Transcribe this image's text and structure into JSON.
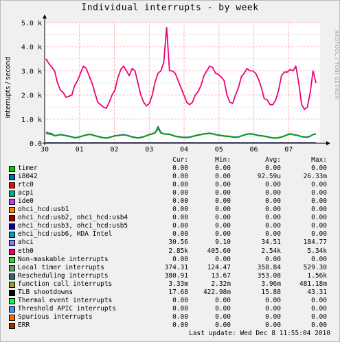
{
  "title": "Individual interrupts - by week",
  "watermark": "RRDTOOL / TOBI OETIKER",
  "chart_data": {
    "type": "line",
    "ylabel": "interrupts / second",
    "ylim": [
      0,
      5000
    ],
    "y_ticks": [
      "0.0",
      "1.0 k",
      "2.0 k",
      "3.0 k",
      "4.0 k",
      "5.0 k"
    ],
    "x_ticks": [
      "30",
      "01",
      "02",
      "03",
      "04",
      "05",
      "06",
      "07"
    ],
    "grid": true,
    "series": [
      {
        "name": "ahci",
        "color": "#7f7fff"
      },
      {
        "name": "eth0",
        "color": "#ee0077",
        "values": [
          3500,
          3300,
          3150,
          3000,
          2500,
          2200,
          2100,
          1900,
          1950,
          2000,
          2400,
          2600,
          2900,
          3200,
          3100,
          2800,
          2500,
          2100,
          1700,
          1600,
          1500,
          1450,
          1700,
          2000,
          2200,
          2700,
          3050,
          3200,
          3000,
          2800,
          3100,
          3000,
          2500,
          2000,
          1700,
          1550,
          1650,
          2000,
          2550,
          2900,
          3000,
          3350,
          4800,
          3000,
          3000,
          2900,
          2600,
          2300,
          2000,
          1700,
          1600,
          1700,
          2000,
          2150,
          2400,
          2800,
          3000,
          3200,
          3150,
          2900,
          2850,
          2750,
          2600,
          2000,
          1700,
          1650,
          2000,
          2300,
          2750,
          2900,
          3100,
          3000,
          3000,
          2900,
          2650,
          2300,
          1850,
          1800,
          1600,
          1600,
          1800,
          2200,
          2800,
          2950,
          2950,
          3050,
          3000,
          3200,
          2500,
          1600,
          1400,
          1500,
          2100,
          3000,
          2500
        ]
      },
      {
        "name": "Local timer interrupts",
        "color": "#00aa00",
        "values": [
          400,
          380,
          360,
          300,
          320,
          350,
          330,
          300,
          280,
          250,
          220,
          230,
          260,
          300,
          330,
          360,
          340,
          300,
          270,
          240,
          220,
          200,
          230,
          260,
          300,
          310,
          330,
          340,
          320,
          290,
          250,
          230,
          210,
          230,
          260,
          300,
          350,
          380,
          420,
          600,
          420,
          380,
          370,
          360,
          320,
          280,
          260,
          240,
          230,
          230,
          240,
          270,
          300,
          330,
          350,
          380,
          390,
          400,
          380,
          350,
          330,
          310,
          290,
          280,
          270,
          250,
          240,
          250,
          290,
          330,
          370,
          380,
          370,
          340,
          310,
          300,
          280,
          260,
          230,
          210,
          200,
          220,
          250,
          290,
          340,
          380,
          350,
          330,
          300,
          260,
          250,
          240,
          280,
          350,
          380
        ]
      },
      {
        "name": "Rescheduling interrupts",
        "color": "#336699",
        "values": [
          450,
          420,
          400,
          320,
          340,
          370,
          350,
          320,
          300,
          270,
          240,
          250,
          280,
          320,
          350,
          380,
          360,
          320,
          290,
          260,
          240,
          220,
          250,
          280,
          320,
          330,
          350,
          360,
          340,
          310,
          270,
          250,
          230,
          250,
          280,
          320,
          370,
          400,
          440,
          700,
          450,
          400,
          390,
          380,
          340,
          300,
          280,
          260,
          250,
          250,
          260,
          290,
          320,
          350,
          370,
          400,
          410,
          420,
          400,
          370,
          350,
          330,
          310,
          300,
          290,
          270,
          260,
          270,
          310,
          350,
          390,
          400,
          390,
          360,
          330,
          320,
          300,
          280,
          250,
          230,
          220,
          240,
          270,
          310,
          360,
          400,
          370,
          350,
          320,
          280,
          270,
          260,
          300,
          370,
          400
        ]
      },
      {
        "name": "TLB shootdowns",
        "color": "#000000"
      }
    ]
  },
  "legend": {
    "headers": [
      "Cur:",
      "Min:",
      "Avg:",
      "Max:"
    ],
    "rows": [
      {
        "name": "timer",
        "color": "#00cc00",
        "cur": "0.00",
        "min": "0.00",
        "avg": "0.00",
        "max": "0.00"
      },
      {
        "name": "i8042",
        "color": "#0066b3",
        "cur": "0.00",
        "min": "0.00",
        "avg": "92.59u",
        "max": "26.33m"
      },
      {
        "name": "rtc0",
        "color": "#ff0000",
        "cur": "0.00",
        "min": "0.00",
        "avg": "0.00",
        "max": "0.00"
      },
      {
        "name": "acpi",
        "color": "#00aa99",
        "cur": "0.00",
        "min": "0.00",
        "avg": "0.00",
        "max": "0.00"
      },
      {
        "name": "ide0",
        "color": "#cc33ff",
        "cur": "0.00",
        "min": "0.00",
        "avg": "0.00",
        "max": "0.00"
      },
      {
        "name": "ohci_hcd:usb1",
        "color": "#ff8000",
        "cur": "0.00",
        "min": "0.00",
        "avg": "0.00",
        "max": "0.00"
      },
      {
        "name": "ohci_hcd:usb2, ohci_hcd:usb4",
        "color": "#990000",
        "cur": "0.00",
        "min": "0.00",
        "avg": "0.00",
        "max": "0.00"
      },
      {
        "name": "ohci_hcd:usb3, ohci_hcd:usb5",
        "color": "#000099",
        "cur": "0.00",
        "min": "0.00",
        "avg": "0.00",
        "max": "0.00"
      },
      {
        "name": "ehci_hcd:usb6, HDA Intel",
        "color": "#0099cc",
        "cur": "0.00",
        "min": "0.00",
        "avg": "0.00",
        "max": "0.00"
      },
      {
        "name": "ahci",
        "color": "#7f7fff",
        "cur": "30.56",
        "min": "9.10",
        "avg": "34.51",
        "max": "184.77"
      },
      {
        "name": "eth0",
        "color": "#ee0077",
        "cur": "2.85k",
        "min": "405.60",
        "avg": "2.54k",
        "max": "5.34k"
      },
      {
        "name": "Non-maskable interrupts",
        "color": "#33cc33",
        "cur": "0.00",
        "min": "0.00",
        "avg": "0.00",
        "max": "0.00"
      },
      {
        "name": "Local timer interrupts",
        "color": "#669966",
        "cur": "374.31",
        "min": "124.47",
        "avg": "358.84",
        "max": "529.30"
      },
      {
        "name": "Rescheduling interrupts",
        "color": "#336666",
        "cur": "380.91",
        "min": "13.67",
        "avg": "353.08",
        "max": "1.56k"
      },
      {
        "name": "function call interrupts",
        "color": "#999933",
        "cur": "3.33m",
        "min": "2.32m",
        "avg": "3.96m",
        "max": "481.18m"
      },
      {
        "name": "TLB shootdowns",
        "color": "#000000",
        "cur": "17.68",
        "min": "422.98m",
        "avg": "15.88",
        "max": "43.31"
      },
      {
        "name": "Thermal event interrupts",
        "color": "#00ff33",
        "cur": "0.00",
        "min": "0.00",
        "avg": "0.00",
        "max": "0.00"
      },
      {
        "name": "Threshold APIC interrupts",
        "color": "#3399ff",
        "cur": "0.00",
        "min": "0.00",
        "avg": "0.00",
        "max": "0.00"
      },
      {
        "name": "Spurious interrupts",
        "color": "#ff6600",
        "cur": "0.00",
        "min": "0.00",
        "avg": "0.00",
        "max": "0.00"
      },
      {
        "name": "ERR",
        "color": "#993300",
        "cur": "0.00",
        "min": "0.00",
        "avg": "0.00",
        "max": "0.00"
      }
    ]
  },
  "last_update": "Last update:  Wed Dec  8 11:55:04 2010"
}
